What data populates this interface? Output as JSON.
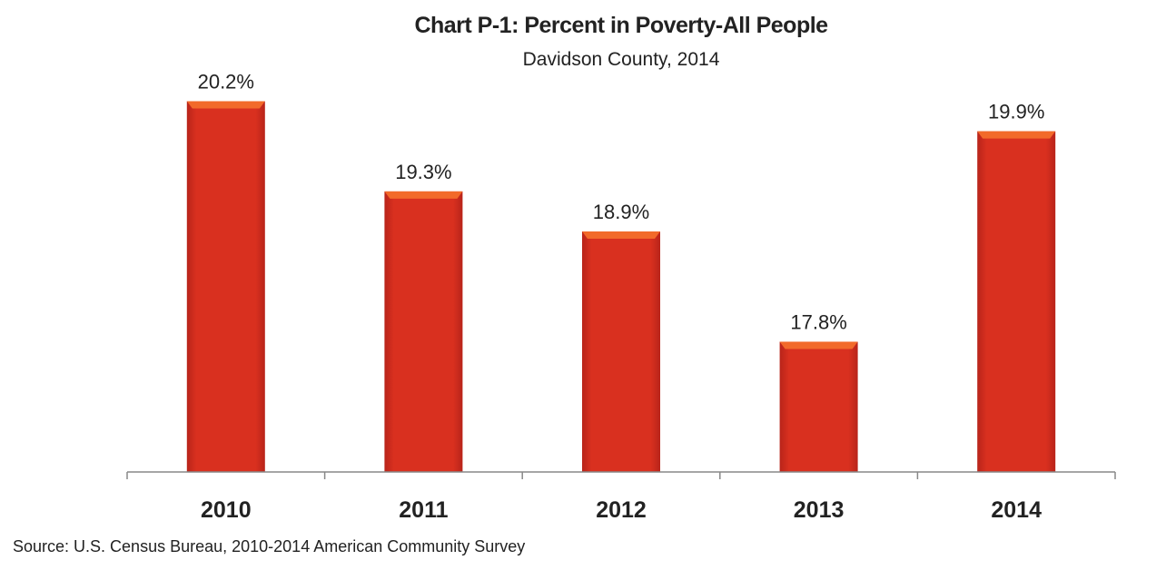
{
  "chart_data": {
    "type": "bar",
    "title": "Chart P-1: Percent in Poverty-All People",
    "subtitle": "Davidson County, 2014",
    "categories": [
      "2010",
      "2011",
      "2012",
      "2013",
      "2014"
    ],
    "values": [
      20.2,
      19.3,
      18.9,
      17.8,
      19.9
    ],
    "data_labels": [
      "20.2%",
      "19.3%",
      "18.9%",
      "17.8%",
      "19.9%"
    ],
    "xlabel": "",
    "ylabel": "",
    "ylim": [
      16.5,
      21
    ],
    "grid": false,
    "legend": "none",
    "bar_color": "#d9301f",
    "bar_top_color": "#f26a2a",
    "source": "Source:  U.S. Census Bureau, 2010-2014 American Community Survey"
  }
}
